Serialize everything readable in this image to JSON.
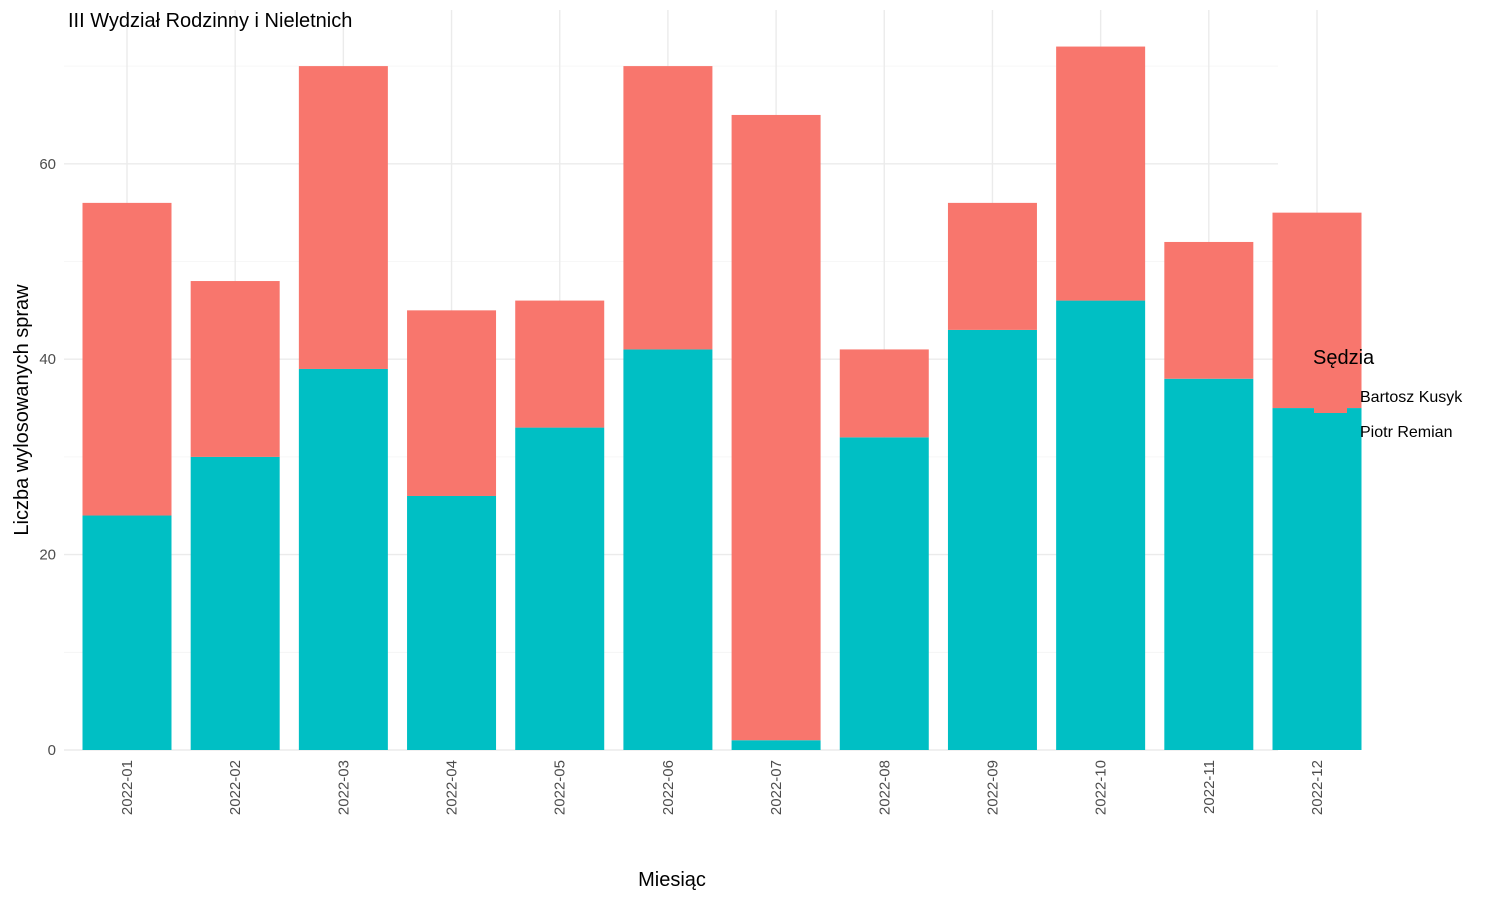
{
  "chart_data": {
    "type": "bar",
    "stacked": true,
    "title": "III Wydział Rodzinny i Nieletnich",
    "xlabel": "Miesiąc",
    "ylabel": "Liczba wylosowanych spraw",
    "ylim": [
      0,
      75
    ],
    "yticks": [
      0,
      20,
      40,
      60
    ],
    "grid": true,
    "legend_title": "Sędzia",
    "legend_position": "right",
    "categories": [
      "2022-01",
      "2022-02",
      "2022-03",
      "2022-04",
      "2022-05",
      "2022-06",
      "2022-07",
      "2022-08",
      "2022-09",
      "2022-10",
      "2022-11",
      "2022-12"
    ],
    "series": [
      {
        "name": "Piotr Remian",
        "color": "#00BFC4",
        "values": [
          24,
          30,
          39,
          26,
          33,
          41,
          1,
          32,
          43,
          46,
          38,
          35
        ]
      },
      {
        "name": "Bartosz Kusyk",
        "color": "#F8766D",
        "values": [
          32,
          18,
          31,
          19,
          13,
          29,
          64,
          9,
          13,
          26,
          14,
          20
        ]
      }
    ],
    "legend_order": [
      "Bartosz Kusyk",
      "Piotr Remian"
    ]
  }
}
